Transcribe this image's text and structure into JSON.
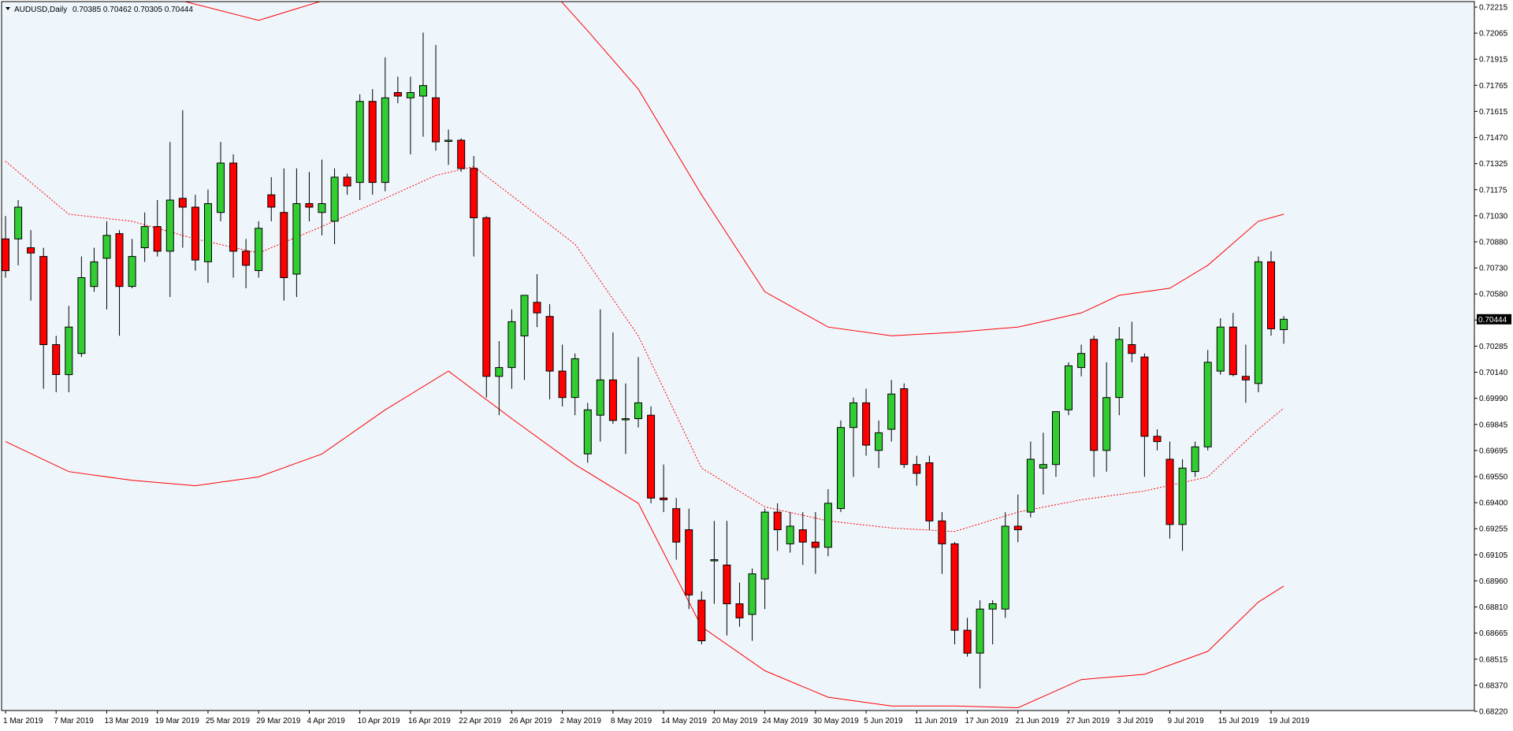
{
  "colors": {
    "background": "#eef6fc",
    "frame": "#000000",
    "bull_body": "#32cd32",
    "bear_body": "#ff0000",
    "wick": "#000000",
    "band": "#ff0000",
    "price_tag_bg": "#000000",
    "price_tag_text": "#ffffff"
  },
  "chart_data": {
    "type": "candlestick",
    "symbol_header": "AUDUSD,Daily",
    "ohlc_header": "0.70385 0.70462 0.70305 0.70444",
    "current_price_label": "0.70444",
    "current_price": 0.70444,
    "ylim": [
      0.6822,
      0.72215
    ],
    "y_ticks": [
      "0.72215",
      "0.72065",
      "0.71915",
      "0.71765",
      "0.71615",
      "0.71470",
      "0.71325",
      "0.71175",
      "0.71030",
      "0.70880",
      "0.70730",
      "0.70580",
      "0.70435",
      "0.70285",
      "0.70140",
      "0.69990",
      "0.69845",
      "0.69695",
      "0.69550",
      "0.69400",
      "0.69255",
      "0.69105",
      "0.68960",
      "0.68810",
      "0.68665",
      "0.68515",
      "0.68370",
      "0.68220"
    ],
    "x_labels": [
      {
        "index": 0,
        "label": "1 Mar 2019"
      },
      {
        "index": 4,
        "label": "7 Mar 2019"
      },
      {
        "index": 8,
        "label": "13 Mar 2019"
      },
      {
        "index": 12,
        "label": "19 Mar 2019"
      },
      {
        "index": 16,
        "label": "25 Mar 2019"
      },
      {
        "index": 20,
        "label": "29 Mar 2019"
      },
      {
        "index": 24,
        "label": "4 Apr 2019"
      },
      {
        "index": 28,
        "label": "10 Apr 2019"
      },
      {
        "index": 32,
        "label": "16 Apr 2019"
      },
      {
        "index": 36,
        "label": "22 Apr 2019"
      },
      {
        "index": 40,
        "label": "26 Apr 2019"
      },
      {
        "index": 44,
        "label": "2 May 2019"
      },
      {
        "index": 48,
        "label": "8 May 2019"
      },
      {
        "index": 52,
        "label": "14 May 2019"
      },
      {
        "index": 56,
        "label": "20 May 2019"
      },
      {
        "index": 60,
        "label": "24 May 2019"
      },
      {
        "index": 64,
        "label": "30 May 2019"
      },
      {
        "index": 68,
        "label": "5 Jun 2019"
      },
      {
        "index": 72,
        "label": "11 Jun 2019"
      },
      {
        "index": 76,
        "label": "17 Jun 2019"
      },
      {
        "index": 80,
        "label": "21 Jun 2019"
      },
      {
        "index": 84,
        "label": "27 Jun 2019"
      },
      {
        "index": 88,
        "label": "3 Jul 2019"
      },
      {
        "index": 92,
        "label": "9 Jul 2019"
      },
      {
        "index": 96,
        "label": "15 Jul 2019"
      },
      {
        "index": 100,
        "label": "19 Jul 2019"
      }
    ],
    "candles": [
      {
        "o": 0.709,
        "h": 0.7103,
        "l": 0.7068,
        "c": 0.7072
      },
      {
        "o": 0.709,
        "h": 0.7112,
        "l": 0.7075,
        "c": 0.7108
      },
      {
        "o": 0.7085,
        "h": 0.7095,
        "l": 0.7055,
        "c": 0.7082
      },
      {
        "o": 0.708,
        "h": 0.7085,
        "l": 0.7005,
        "c": 0.703
      },
      {
        "o": 0.703,
        "h": 0.7035,
        "l": 0.7003,
        "c": 0.7013
      },
      {
        "o": 0.7013,
        "h": 0.7052,
        "l": 0.7003,
        "c": 0.704
      },
      {
        "o": 0.7025,
        "h": 0.708,
        "l": 0.7023,
        "c": 0.7068
      },
      {
        "o": 0.7063,
        "h": 0.7085,
        "l": 0.706,
        "c": 0.7077
      },
      {
        "o": 0.7079,
        "h": 0.71,
        "l": 0.705,
        "c": 0.7092
      },
      {
        "o": 0.7093,
        "h": 0.7095,
        "l": 0.7035,
        "c": 0.7063
      },
      {
        "o": 0.7063,
        "h": 0.709,
        "l": 0.7062,
        "c": 0.708
      },
      {
        "o": 0.7085,
        "h": 0.7105,
        "l": 0.7077,
        "c": 0.7097
      },
      {
        "o": 0.7097,
        "h": 0.7112,
        "l": 0.708,
        "c": 0.7083
      },
      {
        "o": 0.7083,
        "h": 0.7145,
        "l": 0.7057,
        "c": 0.7112
      },
      {
        "o": 0.7113,
        "h": 0.7163,
        "l": 0.7085,
        "c": 0.7108
      },
      {
        "o": 0.7108,
        "h": 0.7115,
        "l": 0.7072,
        "c": 0.7078
      },
      {
        "o": 0.7077,
        "h": 0.7118,
        "l": 0.7065,
        "c": 0.711
      },
      {
        "o": 0.7105,
        "h": 0.7145,
        "l": 0.71,
        "c": 0.7133
      },
      {
        "o": 0.7133,
        "h": 0.7138,
        "l": 0.7068,
        "c": 0.7083
      },
      {
        "o": 0.7083,
        "h": 0.709,
        "l": 0.7062,
        "c": 0.7075
      },
      {
        "o": 0.7072,
        "h": 0.71,
        "l": 0.7068,
        "c": 0.7096
      },
      {
        "o": 0.7115,
        "h": 0.7125,
        "l": 0.71,
        "c": 0.7108
      },
      {
        "o": 0.7105,
        "h": 0.713,
        "l": 0.7055,
        "c": 0.7068
      },
      {
        "o": 0.707,
        "h": 0.713,
        "l": 0.7057,
        "c": 0.711
      },
      {
        "o": 0.711,
        "h": 0.7128,
        "l": 0.71,
        "c": 0.7108
      },
      {
        "o": 0.7105,
        "h": 0.7135,
        "l": 0.7092,
        "c": 0.711
      },
      {
        "o": 0.71,
        "h": 0.713,
        "l": 0.7087,
        "c": 0.7125
      },
      {
        "o": 0.7125,
        "h": 0.7127,
        "l": 0.7115,
        "c": 0.712
      },
      {
        "o": 0.7122,
        "h": 0.7172,
        "l": 0.7112,
        "c": 0.7168
      },
      {
        "o": 0.7168,
        "h": 0.7175,
        "l": 0.7115,
        "c": 0.7122
      },
      {
        "o": 0.7122,
        "h": 0.7193,
        "l": 0.7117,
        "c": 0.717
      },
      {
        "o": 0.7173,
        "h": 0.7182,
        "l": 0.7167,
        "c": 0.7171
      },
      {
        "o": 0.717,
        "h": 0.7182,
        "l": 0.7138,
        "c": 0.7173
      },
      {
        "o": 0.7171,
        "h": 0.7207,
        "l": 0.7148,
        "c": 0.7177
      },
      {
        "o": 0.717,
        "h": 0.72,
        "l": 0.714,
        "c": 0.7145
      },
      {
        "o": 0.7146,
        "h": 0.7152,
        "l": 0.7132,
        "c": 0.7146
      },
      {
        "o": 0.7146,
        "h": 0.7147,
        "l": 0.7128,
        "c": 0.713
      },
      {
        "o": 0.713,
        "h": 0.7137,
        "l": 0.708,
        "c": 0.7102
      },
      {
        "o": 0.7102,
        "h": 0.7103,
        "l": 0.7,
        "c": 0.7012
      },
      {
        "o": 0.7012,
        "h": 0.7032,
        "l": 0.699,
        "c": 0.7017
      },
      {
        "o": 0.7017,
        "h": 0.705,
        "l": 0.7005,
        "c": 0.7043
      },
      {
        "o": 0.7035,
        "h": 0.7058,
        "l": 0.701,
        "c": 0.7058
      },
      {
        "o": 0.7054,
        "h": 0.707,
        "l": 0.704,
        "c": 0.7048
      },
      {
        "o": 0.7046,
        "h": 0.7053,
        "l": 0.6999,
        "c": 0.7015
      },
      {
        "o": 0.7015,
        "h": 0.703,
        "l": 0.6995,
        "c": 0.7
      },
      {
        "o": 0.7,
        "h": 0.7025,
        "l": 0.699,
        "c": 0.7022
      },
      {
        "o": 0.6968,
        "h": 0.6997,
        "l": 0.6963,
        "c": 0.6993
      },
      {
        "o": 0.699,
        "h": 0.705,
        "l": 0.6975,
        "c": 0.701
      },
      {
        "o": 0.701,
        "h": 0.7037,
        "l": 0.6985,
        "c": 0.6987
      },
      {
        "o": 0.6988,
        "h": 0.7008,
        "l": 0.6968,
        "c": 0.6988
      },
      {
        "o": 0.6988,
        "h": 0.7023,
        "l": 0.6983,
        "c": 0.6997
      },
      {
        "o": 0.699,
        "h": 0.6995,
        "l": 0.694,
        "c": 0.6943
      },
      {
        "o": 0.6943,
        "h": 0.6962,
        "l": 0.6935,
        "c": 0.6942
      },
      {
        "o": 0.6937,
        "h": 0.6943,
        "l": 0.6908,
        "c": 0.6918
      },
      {
        "o": 0.6925,
        "h": 0.6937,
        "l": 0.688,
        "c": 0.6888
      },
      {
        "o": 0.6885,
        "h": 0.689,
        "l": 0.686,
        "c": 0.6862
      },
      {
        "o": 0.6908,
        "h": 0.693,
        "l": 0.6883,
        "c": 0.6908
      },
      {
        "o": 0.6905,
        "h": 0.693,
        "l": 0.6865,
        "c": 0.6883
      },
      {
        "o": 0.6883,
        "h": 0.6895,
        "l": 0.687,
        "c": 0.6875
      },
      {
        "o": 0.6877,
        "h": 0.6903,
        "l": 0.6862,
        "c": 0.69
      },
      {
        "o": 0.6897,
        "h": 0.6937,
        "l": 0.688,
        "c": 0.6935
      },
      {
        "o": 0.6935,
        "h": 0.694,
        "l": 0.6913,
        "c": 0.6925
      },
      {
        "o": 0.6917,
        "h": 0.6935,
        "l": 0.6912,
        "c": 0.6927
      },
      {
        "o": 0.6925,
        "h": 0.6935,
        "l": 0.6905,
        "c": 0.6918
      },
      {
        "o": 0.6918,
        "h": 0.6935,
        "l": 0.69,
        "c": 0.6915
      },
      {
        "o": 0.6915,
        "h": 0.6948,
        "l": 0.691,
        "c": 0.694
      },
      {
        "o": 0.6937,
        "h": 0.6987,
        "l": 0.6935,
        "c": 0.6983
      },
      {
        "o": 0.6983,
        "h": 0.7,
        "l": 0.6955,
        "c": 0.6997
      },
      {
        "o": 0.6997,
        "h": 0.7005,
        "l": 0.6967,
        "c": 0.6973
      },
      {
        "o": 0.697,
        "h": 0.6987,
        "l": 0.696,
        "c": 0.698
      },
      {
        "o": 0.6982,
        "h": 0.701,
        "l": 0.6975,
        "c": 0.7002
      },
      {
        "o": 0.7005,
        "h": 0.7008,
        "l": 0.696,
        "c": 0.6962
      },
      {
        "o": 0.6962,
        "h": 0.6967,
        "l": 0.695,
        "c": 0.6957
      },
      {
        "o": 0.6963,
        "h": 0.6967,
        "l": 0.6925,
        "c": 0.693
      },
      {
        "o": 0.693,
        "h": 0.6935,
        "l": 0.69,
        "c": 0.6917
      },
      {
        "o": 0.6917,
        "h": 0.6918,
        "l": 0.686,
        "c": 0.6868
      },
      {
        "o": 0.6868,
        "h": 0.6875,
        "l": 0.6853,
        "c": 0.6855
      },
      {
        "o": 0.6855,
        "h": 0.6885,
        "l": 0.6835,
        "c": 0.688
      },
      {
        "o": 0.688,
        "h": 0.6885,
        "l": 0.686,
        "c": 0.6883
      },
      {
        "o": 0.688,
        "h": 0.6935,
        "l": 0.6875,
        "c": 0.6927
      },
      {
        "o": 0.6927,
        "h": 0.6945,
        "l": 0.6918,
        "c": 0.6925
      },
      {
        "o": 0.6935,
        "h": 0.6975,
        "l": 0.6932,
        "c": 0.6965
      },
      {
        "o": 0.696,
        "h": 0.698,
        "l": 0.6945,
        "c": 0.6962
      },
      {
        "o": 0.6962,
        "h": 0.699,
        "l": 0.6955,
        "c": 0.6992
      },
      {
        "o": 0.6993,
        "h": 0.702,
        "l": 0.699,
        "c": 0.7018
      },
      {
        "o": 0.7017,
        "h": 0.703,
        "l": 0.7012,
        "c": 0.7025
      },
      {
        "o": 0.7033,
        "h": 0.7035,
        "l": 0.6955,
        "c": 0.697
      },
      {
        "o": 0.697,
        "h": 0.702,
        "l": 0.6958,
        "c": 0.7
      },
      {
        "o": 0.7,
        "h": 0.704,
        "l": 0.699,
        "c": 0.7033
      },
      {
        "o": 0.703,
        "h": 0.7043,
        "l": 0.702,
        "c": 0.7025
      },
      {
        "o": 0.7023,
        "h": 0.7025,
        "l": 0.6955,
        "c": 0.6978
      },
      {
        "o": 0.6978,
        "h": 0.6982,
        "l": 0.697,
        "c": 0.6975
      },
      {
        "o": 0.6965,
        "h": 0.6975,
        "l": 0.692,
        "c": 0.6928
      },
      {
        "o": 0.6928,
        "h": 0.6965,
        "l": 0.6913,
        "c": 0.696
      },
      {
        "o": 0.6958,
        "h": 0.6975,
        "l": 0.6955,
        "c": 0.6972
      },
      {
        "o": 0.6972,
        "h": 0.7027,
        "l": 0.697,
        "c": 0.702
      },
      {
        "o": 0.7015,
        "h": 0.7045,
        "l": 0.7013,
        "c": 0.704
      },
      {
        "o": 0.704,
        "h": 0.7048,
        "l": 0.7012,
        "c": 0.7013
      },
      {
        "o": 0.7012,
        "h": 0.703,
        "l": 0.6997,
        "c": 0.701
      },
      {
        "o": 0.7008,
        "h": 0.708,
        "l": 0.7003,
        "c": 0.7077
      },
      {
        "o": 0.7077,
        "h": 0.7083,
        "l": 0.7035,
        "c": 0.7039
      },
      {
        "o": 0.70385,
        "h": 0.70462,
        "l": 0.70305,
        "c": 0.70444
      }
    ],
    "bollinger": {
      "upper": [
        [
          -1,
          0.723
        ],
        [
          5,
          0.7228
        ],
        [
          14,
          0.7225
        ],
        [
          20,
          0.7214
        ],
        [
          25,
          0.7225
        ],
        [
          30,
          0.724
        ],
        [
          42,
          0.724
        ],
        [
          46,
          0.7208
        ],
        [
          50,
          0.7175
        ],
        [
          55,
          0.7115
        ],
        [
          60,
          0.706
        ],
        [
          65,
          0.704
        ],
        [
          70,
          0.7035
        ],
        [
          75,
          0.7037
        ],
        [
          80,
          0.704
        ],
        [
          85,
          0.7048
        ],
        [
          88,
          0.7058
        ],
        [
          92,
          0.7062
        ],
        [
          95,
          0.7075
        ],
        [
          99,
          0.71
        ],
        [
          101,
          0.7104
        ]
      ],
      "middle": [
        [
          0,
          0.7134
        ],
        [
          5,
          0.7104
        ],
        [
          10,
          0.71
        ],
        [
          15,
          0.709
        ],
        [
          20,
          0.7082
        ],
        [
          25,
          0.7097
        ],
        [
          30,
          0.7113
        ],
        [
          34,
          0.7126
        ],
        [
          37,
          0.7131
        ],
        [
          45,
          0.7087
        ],
        [
          50,
          0.7035
        ],
        [
          55,
          0.696
        ],
        [
          60,
          0.6938
        ],
        [
          65,
          0.693
        ],
        [
          70,
          0.6926
        ],
        [
          75,
          0.6924
        ],
        [
          80,
          0.6935
        ],
        [
          85,
          0.6942
        ],
        [
          90,
          0.6947
        ],
        [
          95,
          0.6955
        ],
        [
          99,
          0.6982
        ],
        [
          101,
          0.6994
        ]
      ],
      "lower": [
        [
          0,
          0.6975
        ],
        [
          5,
          0.6958
        ],
        [
          10,
          0.6953
        ],
        [
          15,
          0.695
        ],
        [
          20,
          0.6955
        ],
        [
          25,
          0.6968
        ],
        [
          30,
          0.6993
        ],
        [
          35,
          0.7015
        ],
        [
          40,
          0.6988
        ],
        [
          45,
          0.6962
        ],
        [
          50,
          0.694
        ],
        [
          55,
          0.687
        ],
        [
          60,
          0.6845
        ],
        [
          65,
          0.683
        ],
        [
          70,
          0.6825
        ],
        [
          75,
          0.6825
        ],
        [
          80,
          0.6824
        ],
        [
          85,
          0.684
        ],
        [
          90,
          0.6843
        ],
        [
          95,
          0.6856
        ],
        [
          99,
          0.6884
        ],
        [
          101,
          0.6893
        ]
      ]
    }
  }
}
